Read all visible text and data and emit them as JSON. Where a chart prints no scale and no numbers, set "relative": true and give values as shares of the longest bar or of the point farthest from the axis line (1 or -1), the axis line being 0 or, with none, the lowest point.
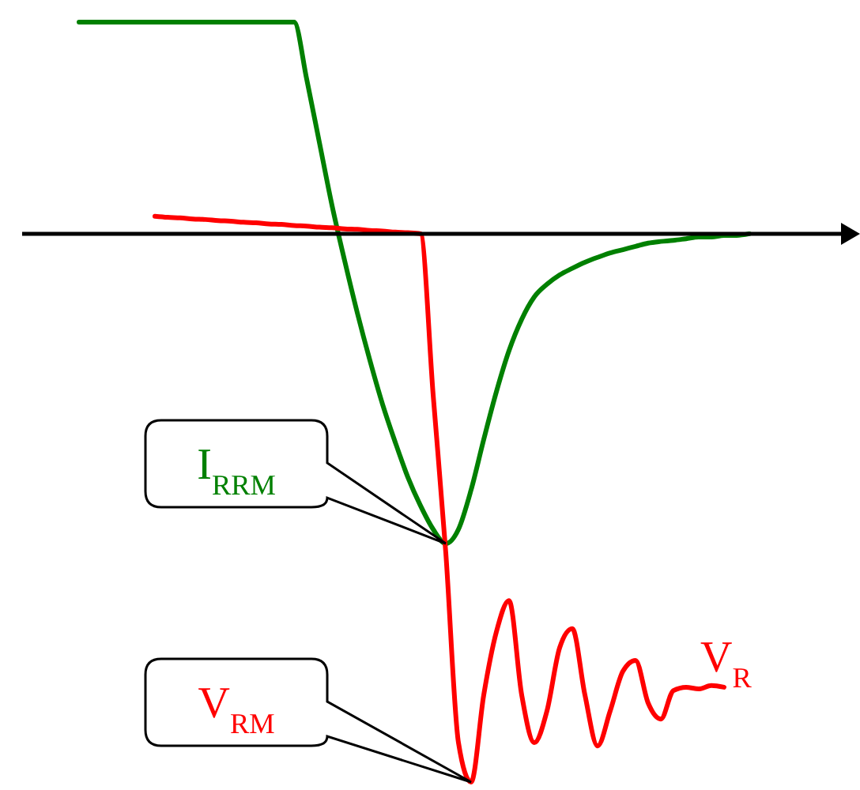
{
  "chart_data": {
    "type": "line",
    "relative": true,
    "categories": [
      null,
      null,
      null,
      null,
      null,
      null,
      null,
      null,
      null,
      null,
      null,
      null,
      null,
      null,
      null,
      null,
      null,
      null,
      null,
      null,
      null,
      null,
      null,
      null,
      null,
      null,
      null,
      null,
      null,
      null,
      null,
      null,
      null,
      null,
      null,
      null,
      null,
      null,
      null,
      null,
      null,
      null,
      null,
      null,
      null,
      null,
      null,
      null,
      null,
      null,
      null,
      null,
      null,
      null
    ],
    "series": [
      {
        "color": "#008000",
        "values": [
          0.386,
          0.386,
          0.386,
          0.386,
          0.386,
          0.386,
          0.386,
          0.386,
          0.386,
          0.386,
          0.386,
          0.386,
          0.386,
          0.386,
          0.386,
          0.386,
          0.386,
          0.386,
          0.282,
          0.167,
          0.052,
          -0.049,
          -0.144,
          -0.231,
          -0.311,
          -0.38,
          -0.444,
          -0.496,
          -0.539,
          -0.565,
          -0.539,
          -0.467,
          -0.375,
          -0.288,
          -0.213,
          -0.156,
          -0.115,
          -0.092,
          -0.075,
          -0.063,
          -0.052,
          -0.043,
          -0.035,
          -0.029,
          -0.023,
          -0.017,
          -0.014,
          -0.012,
          -0.009,
          -0.006,
          -0.006,
          -0.003,
          -0.003,
          0
        ]
      },
      {
        "name": "V$_{R}$",
        "color": "#ff0000",
        "values": [
          null,
          null,
          null,
          null,
          null,
          null,
          0.032,
          0.03,
          0.029,
          0.027,
          0.026,
          0.024,
          0.023,
          0.021,
          0.02,
          0.018,
          0.017,
          0.015,
          0.014,
          0.012,
          0.011,
          0.009,
          0.008,
          0.006,
          0.005,
          0.003,
          0.002,
          0,
          -0.294,
          -0.582,
          -0.928,
          -1,
          -0.841,
          -0.726,
          -0.669,
          -0.841,
          -0.928,
          -0.87,
          -0.755,
          -0.72,
          -0.841,
          -0.934,
          -0.87,
          -0.798,
          -0.778,
          -0.856,
          -0.885,
          -0.833,
          -0.827,
          -0.83,
          -0.824,
          -0.827,
          null,
          null
        ]
      }
    ],
    "annotations": [
      "I$_{RRM}$",
      "V$_{RM}$"
    ]
  }
}
